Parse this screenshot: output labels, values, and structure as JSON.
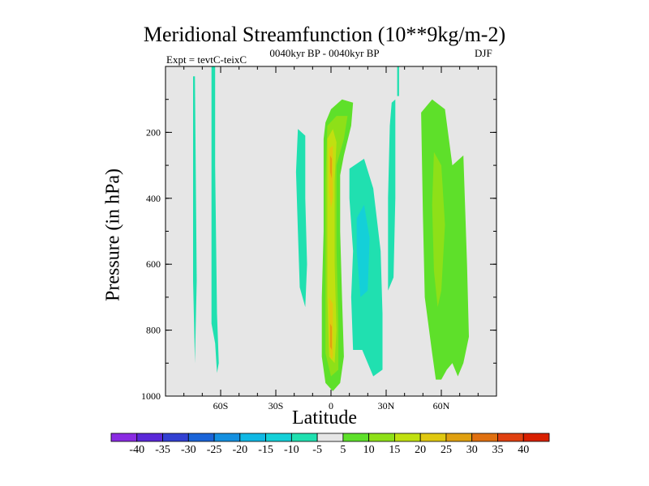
{
  "chart_data": {
    "type": "contour",
    "title": "Meridional Streamfunction (10**9kg/m-2)",
    "subtitle_left": "Expt = tevtC-teixC",
    "subtitle_center": "0040kyr BP - 0040kyr BP",
    "subtitle_right": "DJF",
    "xlabel": "Latitude",
    "ylabel": "Pressure (in hPa)",
    "xlim": [
      -90,
      90
    ],
    "ylim": [
      1000,
      0
    ],
    "x_ticks": [
      {
        "v": -60,
        "label": "60S"
      },
      {
        "v": -30,
        "label": "30S"
      },
      {
        "v": 0,
        "label": "0"
      },
      {
        "v": 30,
        "label": "30N"
      },
      {
        "v": 60,
        "label": "60N"
      }
    ],
    "y_ticks": [
      {
        "v": 200,
        "label": "200"
      },
      {
        "v": 400,
        "label": "400"
      },
      {
        "v": 600,
        "label": "600"
      },
      {
        "v": 800,
        "label": "800"
      },
      {
        "v": 1000,
        "label": "1000"
      }
    ],
    "background_color": "#e6e6e6",
    "colorbar": {
      "levels": [
        "-40",
        "-35",
        "-30",
        "-25",
        "-20",
        "-15",
        "-10",
        "-5",
        "5",
        "10",
        "15",
        "20",
        "25",
        "30",
        "35",
        "40"
      ],
      "colors": [
        "#8a2be2",
        "#5a28d8",
        "#3240d2",
        "#1a64d8",
        "#1490e0",
        "#10b8e4",
        "#14d0d8",
        "#20e0b0",
        "#e6e6e6",
        "#5ee02a",
        "#8ee018",
        "#c0e010",
        "#e0c810",
        "#e0a010",
        "#e07010",
        "#e04010",
        "#d82000"
      ]
    },
    "contour_regions": [
      {
        "name": "neg-5 band near 70S",
        "level": -5,
        "color": "#20e0b0",
        "points": [
          [
            -74,
            30
          ],
          [
            -73,
            650
          ],
          [
            -74,
            900
          ],
          [
            -75,
            650
          ],
          [
            -75,
            30
          ]
        ]
      },
      {
        "name": "neg-5 column near 63S",
        "level": -5,
        "color": "#20e0b0",
        "points": [
          [
            -65,
            -20
          ],
          [
            -63,
            -20
          ],
          [
            -63,
            300
          ],
          [
            -62,
            750
          ],
          [
            -61,
            900
          ],
          [
            -62,
            930
          ],
          [
            -63,
            840
          ],
          [
            -65,
            780
          ],
          [
            -65,
            300
          ]
        ]
      },
      {
        "name": "neg-5 cell 20S",
        "level": -5,
        "color": "#20e0b0",
        "points": [
          [
            -18,
            190
          ],
          [
            -14,
            210
          ],
          [
            -14,
            400
          ],
          [
            -13,
            600
          ],
          [
            -14,
            730
          ],
          [
            -17,
            670
          ],
          [
            -18,
            500
          ],
          [
            -19,
            320
          ]
        ]
      },
      {
        "name": "neg-5 cell 20N",
        "level": -5,
        "color": "#20e0b0",
        "points": [
          [
            10,
            310
          ],
          [
            18,
            280
          ],
          [
            23,
            370
          ],
          [
            27,
            560
          ],
          [
            28,
            750
          ],
          [
            28,
            920
          ],
          [
            23,
            940
          ],
          [
            17,
            860
          ],
          [
            12,
            860
          ],
          [
            11,
            700
          ],
          [
            12,
            560
          ],
          [
            10,
            400
          ]
        ]
      },
      {
        "name": "neg-10 core 20N",
        "level": -10,
        "color": "#14d0d8",
        "points": [
          [
            14,
            460
          ],
          [
            18,
            420
          ],
          [
            21,
            520
          ],
          [
            20,
            680
          ],
          [
            16,
            700
          ],
          [
            14,
            560
          ]
        ]
      },
      {
        "name": "neg-5 filament 38N",
        "level": -5,
        "color": "#20e0b0",
        "points": [
          [
            33,
            110
          ],
          [
            35,
            100
          ],
          [
            35,
            400
          ],
          [
            34,
            640
          ],
          [
            31,
            680
          ],
          [
            31,
            400
          ],
          [
            32,
            180
          ]
        ]
      },
      {
        "name": "neg-5 filament top 38N",
        "level": -5,
        "color": "#20e0b0",
        "points": [
          [
            36,
            -20
          ],
          [
            37,
            -20
          ],
          [
            37,
            90
          ],
          [
            36,
            90
          ]
        ]
      },
      {
        "name": "pos-5 equatorial cell",
        "level": 5,
        "color": "#5ee02a",
        "points": [
          [
            -3,
            170
          ],
          [
            0,
            130
          ],
          [
            6,
            100
          ],
          [
            12,
            110
          ],
          [
            11,
            180
          ],
          [
            7,
            270
          ],
          [
            5,
            330
          ],
          [
            5,
            500
          ],
          [
            6,
            700
          ],
          [
            7,
            880
          ],
          [
            5,
            960
          ],
          [
            1,
            985
          ],
          [
            -3,
            960
          ],
          [
            -5,
            880
          ],
          [
            -5,
            700
          ],
          [
            -4,
            500
          ],
          [
            -4,
            330
          ],
          [
            -4,
            220
          ]
        ]
      },
      {
        "name": "pos-10 equatorial",
        "level": 10,
        "color": "#8ee018",
        "points": [
          [
            -2,
            180
          ],
          [
            3,
            150
          ],
          [
            9,
            150
          ],
          [
            7,
            220
          ],
          [
            3,
            300
          ],
          [
            3,
            550
          ],
          [
            4,
            780
          ],
          [
            4,
            920
          ],
          [
            0,
            940
          ],
          [
            -3,
            870
          ],
          [
            -3,
            600
          ],
          [
            -3,
            350
          ]
        ]
      },
      {
        "name": "pos-15 equatorial",
        "level": 15,
        "color": "#c0e010",
        "points": [
          [
            -2,
            220
          ],
          [
            1,
            190
          ],
          [
            3,
            230
          ],
          [
            2,
            350
          ],
          [
            2,
            600
          ],
          [
            3,
            800
          ],
          [
            2,
            900
          ],
          [
            -1,
            880
          ],
          [
            -2,
            700
          ],
          [
            -2,
            400
          ]
        ]
      },
      {
        "name": "pos-20 upper core",
        "level": 20,
        "color": "#e0c810",
        "points": [
          [
            -1,
            250
          ],
          [
            1,
            240
          ],
          [
            1,
            400
          ],
          [
            0,
            430
          ],
          [
            -1,
            380
          ]
        ]
      },
      {
        "name": "pos-20 lower core",
        "level": 20,
        "color": "#e0c810",
        "points": [
          [
            -1,
            700
          ],
          [
            1,
            720
          ],
          [
            1,
            880
          ],
          [
            0,
            890
          ],
          [
            -1,
            850
          ]
        ]
      },
      {
        "name": "pos-25 upper core",
        "level": 25,
        "color": "#e0a010",
        "points": [
          [
            -0.5,
            270
          ],
          [
            0.5,
            280
          ],
          [
            0.4,
            340
          ],
          [
            -0.5,
            320
          ]
        ]
      },
      {
        "name": "pos-25 lower core",
        "level": 25,
        "color": "#e0a010",
        "points": [
          [
            -0.5,
            780
          ],
          [
            0.5,
            790
          ],
          [
            0.5,
            860
          ],
          [
            -0.5,
            850
          ]
        ]
      },
      {
        "name": "pos-5 NH cell 60N",
        "level": 5,
        "color": "#5ee02a",
        "points": [
          [
            49,
            140
          ],
          [
            55,
            100
          ],
          [
            62,
            130
          ],
          [
            66,
            300
          ],
          [
            72,
            270
          ],
          [
            74,
            600
          ],
          [
            75,
            820
          ],
          [
            72,
            900
          ],
          [
            69,
            940
          ],
          [
            66,
            900
          ],
          [
            63,
            920
          ],
          [
            60,
            950
          ],
          [
            57,
            950
          ],
          [
            55,
            870
          ],
          [
            51,
            700
          ],
          [
            50,
            450
          ]
        ]
      },
      {
        "name": "pos-10 NH cell core",
        "level": 10,
        "color": "#8ee018",
        "points": [
          [
            56,
            260
          ],
          [
            60,
            300
          ],
          [
            62,
            480
          ],
          [
            60,
            680
          ],
          [
            58,
            730
          ],
          [
            56,
            620
          ],
          [
            55,
            420
          ]
        ]
      }
    ]
  }
}
